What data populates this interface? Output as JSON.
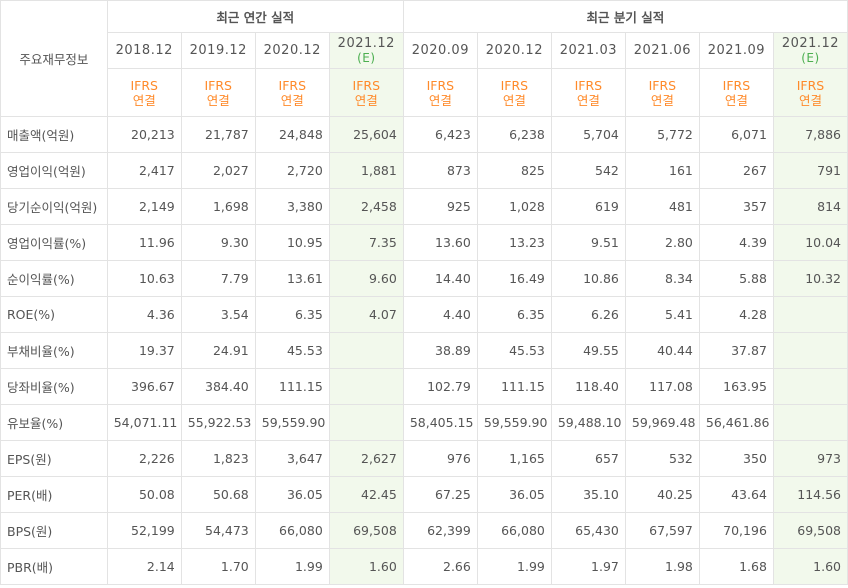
{
  "header": {
    "item_label": "주요재무정보",
    "annual_title": "최근 연간 실적",
    "quarterly_title": "최근 분기 실적",
    "basis_top": "IFRS",
    "basis_bottom": "연결",
    "estimate_mark": "(E)"
  },
  "columns": [
    {
      "date": "2018.12",
      "estimate": false
    },
    {
      "date": "2019.12",
      "estimate": false
    },
    {
      "date": "2020.12",
      "estimate": false
    },
    {
      "date": "2021.12",
      "estimate": true
    },
    {
      "date": "2020.09",
      "estimate": false
    },
    {
      "date": "2020.12",
      "estimate": false
    },
    {
      "date": "2021.03",
      "estimate": false
    },
    {
      "date": "2021.06",
      "estimate": false
    },
    {
      "date": "2021.09",
      "estimate": false
    },
    {
      "date": "2021.12",
      "estimate": true
    }
  ],
  "rows": [
    {
      "label": "매출액(억원)",
      "values": [
        "20,213",
        "21,787",
        "24,848",
        "25,604",
        "6,423",
        "6,238",
        "5,704",
        "5,772",
        "6,071",
        "7,886"
      ],
      "group_start": true
    },
    {
      "label": "영업이익(억원)",
      "values": [
        "2,417",
        "2,027",
        "2,720",
        "1,881",
        "873",
        "825",
        "542",
        "161",
        "267",
        "791"
      ],
      "group_start": false
    },
    {
      "label": "당기순이익(억원)",
      "values": [
        "2,149",
        "1,698",
        "3,380",
        "2,458",
        "925",
        "1,028",
        "619",
        "481",
        "357",
        "814"
      ],
      "group_start": false
    },
    {
      "label": "영업이익률(%)",
      "values": [
        "11.96",
        "9.30",
        "10.95",
        "7.35",
        "13.60",
        "13.23",
        "9.51",
        "2.80",
        "4.39",
        "10.04"
      ],
      "group_start": true
    },
    {
      "label": "순이익률(%)",
      "values": [
        "10.63",
        "7.79",
        "13.61",
        "9.60",
        "14.40",
        "16.49",
        "10.86",
        "8.34",
        "5.88",
        "10.32"
      ],
      "group_start": false
    },
    {
      "label": "ROE(%)",
      "values": [
        "4.36",
        "3.54",
        "6.35",
        "4.07",
        "4.40",
        "6.35",
        "6.26",
        "5.41",
        "4.28",
        ""
      ],
      "group_start": false
    },
    {
      "label": "부채비율(%)",
      "values": [
        "19.37",
        "24.91",
        "45.53",
        "",
        "38.89",
        "45.53",
        "49.55",
        "40.44",
        "37.87",
        ""
      ],
      "group_start": true
    },
    {
      "label": "당좌비율(%)",
      "values": [
        "396.67",
        "384.40",
        "111.15",
        "",
        "102.79",
        "111.15",
        "118.40",
        "117.08",
        "163.95",
        ""
      ],
      "group_start": false
    },
    {
      "label": "유보율(%)",
      "values": [
        "54,071.11",
        "55,922.53",
        "59,559.90",
        "",
        "58,405.15",
        "59,559.90",
        "59,488.10",
        "59,969.48",
        "56,461.86",
        ""
      ],
      "group_start": false
    },
    {
      "label": "EPS(원)",
      "values": [
        "2,226",
        "1,823",
        "3,647",
        "2,627",
        "976",
        "1,165",
        "657",
        "532",
        "350",
        "973"
      ],
      "group_start": true
    },
    {
      "label": "PER(배)",
      "values": [
        "50.08",
        "50.68",
        "36.05",
        "42.45",
        "67.25",
        "36.05",
        "35.10",
        "40.25",
        "43.64",
        "114.56"
      ],
      "group_start": false
    },
    {
      "label": "BPS(원)",
      "values": [
        "52,199",
        "54,473",
        "66,080",
        "69,508",
        "62,399",
        "66,080",
        "65,430",
        "67,597",
        "70,196",
        "69,508"
      ],
      "group_start": false
    },
    {
      "label": "PBR(배)",
      "values": [
        "2.14",
        "1.70",
        "1.99",
        "1.60",
        "2.66",
        "1.99",
        "1.97",
        "1.98",
        "1.68",
        "1.60"
      ],
      "group_start": false
    }
  ]
}
